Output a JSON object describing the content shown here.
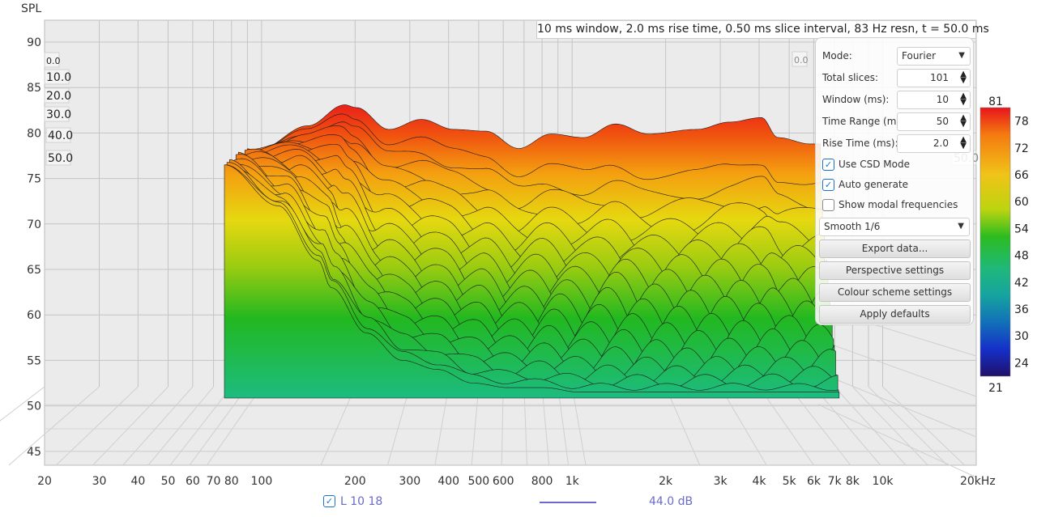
{
  "chart_data": {
    "type": "area",
    "subtype": "waterfall",
    "ylabel": "SPL",
    "x_scale": "log",
    "xlim": [
      20,
      20000
    ],
    "ylim": [
      43.5,
      92.5
    ],
    "grid": true,
    "x_ticks": [
      "20",
      "30",
      "40",
      "50",
      "60",
      "70",
      "80",
      "100",
      "200",
      "300",
      "400",
      "500",
      "600",
      "800",
      "1k",
      "2k",
      "3k",
      "4k",
      "5k",
      "6k",
      "7k",
      "8k",
      "10k",
      "20kHz"
    ],
    "x_tick_values": [
      20,
      30,
      40,
      50,
      60,
      70,
      80,
      100,
      200,
      300,
      400,
      500,
      600,
      800,
      1000,
      2000,
      3000,
      4000,
      5000,
      6000,
      7000,
      8000,
      10000,
      20000
    ],
    "y_ticks": [
      90,
      85,
      80,
      75,
      70,
      65,
      60,
      55,
      50,
      45
    ],
    "time_axis_labels": [
      "0.0",
      "10.0",
      "20.0",
      "30.0",
      "40.0",
      "50.0"
    ],
    "time_range_ms": [
      0,
      50
    ],
    "slice_t0": {
      "freq_hz": [
        98,
        141,
        185,
        202,
        257,
        327,
        415,
        528,
        672,
        855,
        1087,
        1381,
        1757,
        2520,
        3205,
        4075,
        4594,
        5840
      ],
      "spl_db": [
        78.2,
        80.8,
        83.1,
        82.8,
        80.4,
        81.5,
        80.4,
        80.2,
        78.3,
        79.9,
        79.5,
        81.0,
        79.9,
        80.4,
        81.2,
        81.7,
        79.5,
        78.8
      ]
    },
    "slice_t50": {
      "freq_hz": [
        98,
        141,
        185,
        202,
        257,
        327,
        415,
        528,
        672,
        855,
        1087,
        1381,
        1757,
        2520,
        3205,
        4075,
        4594,
        5840
      ],
      "spl_db": [
        76.5,
        72.0,
        66.0,
        63.0,
        58.0,
        55.0,
        54.0,
        52.5,
        52.0,
        52.0,
        51.5,
        51.5,
        51.5,
        51.5,
        51.5,
        51.5,
        51.5,
        51.5
      ]
    },
    "colorbar": {
      "ticks": [
        "81",
        "78",
        "72",
        "66",
        "60",
        "54",
        "48",
        "42",
        "36",
        "30",
        "24",
        "21"
      ],
      "range": [
        21,
        81
      ],
      "colors": [
        "#e8141c",
        "#f47a10",
        "#f0c418",
        "#d9dc10",
        "#3fc020",
        "#1fb87a",
        "#16a3a0",
        "#1270b8",
        "#1530c8",
        "#20106a"
      ]
    },
    "info": "10 ms window, 2.0 ms rise time, 0.50 ms slice interval, 83 Hz resn, t = 50.0 ms"
  },
  "panel": {
    "mode_label": "Mode:",
    "mode_value": "Fourier",
    "slices_label": "Total slices:",
    "slices_value": "101",
    "window_label": "Window (ms):",
    "window_value": "10",
    "range_label": "Time Range (ms):",
    "range_value": "50",
    "rise_label": "Rise Time (ms):",
    "rise_value": "2.0",
    "csd_label": "Use CSD Mode",
    "csd_checked": true,
    "auto_label": "Auto generate",
    "auto_checked": true,
    "modal_label": "Show modal frequencies",
    "modal_checked": false,
    "smooth_value": "Smooth 1/6",
    "export_label": "Export data...",
    "perspective_label": "Perspective settings",
    "colour_label": "Colour scheme settings",
    "defaults_label": "Apply defaults"
  },
  "legend": {
    "name": "L 10 18",
    "checked": true,
    "value": "44.0 dB",
    "color": "#6b6bc8"
  }
}
